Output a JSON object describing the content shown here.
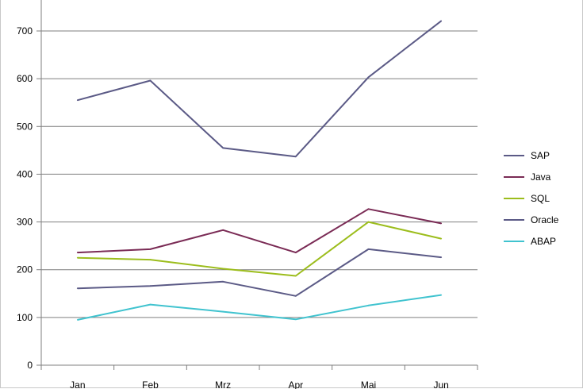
{
  "chart_data": {
    "type": "line",
    "categories": [
      "Jan",
      "Feb",
      "Mrz",
      "Apr",
      "Mai",
      "Jun"
    ],
    "ylim": [
      0,
      700
    ],
    "yticks": [
      0,
      100,
      200,
      300,
      400,
      500,
      600,
      700
    ],
    "grid": true,
    "legend_position": "right",
    "series": [
      {
        "name": "SAP",
        "color": "#5b5a86",
        "values": [
          555,
          596,
          455,
          437,
          603,
          721
        ]
      },
      {
        "name": "Java",
        "color": "#7a2b55",
        "values": [
          236,
          243,
          283,
          236,
          327,
          297
        ]
      },
      {
        "name": "SQL",
        "color": "#9cbd1c",
        "values": [
          225,
          221,
          202,
          187,
          300,
          265
        ]
      },
      {
        "name": "Oracle",
        "color": "#5b5a86",
        "values": [
          161,
          166,
          175,
          145,
          243,
          226
        ]
      },
      {
        "name": "ABAP",
        "color": "#40c3cf",
        "values": [
          95,
          127,
          112,
          96,
          125,
          147
        ]
      }
    ]
  }
}
